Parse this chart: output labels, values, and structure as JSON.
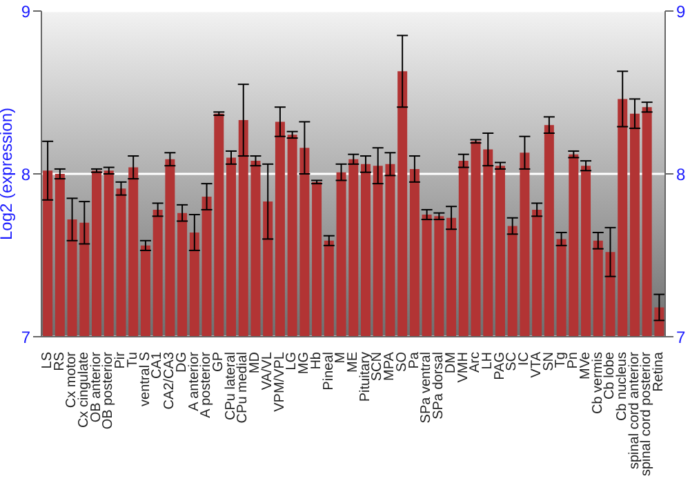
{
  "chart_data": {
    "type": "bar",
    "ylabel": "Log2 (expression)",
    "categories": [
      "LS",
      "RS",
      "Cx motor",
      "Cx cingulate",
      "OB anterior",
      "OB posterior",
      "Pir",
      "Tu",
      "ventral S",
      "CA1",
      "CA2/CA3",
      "DG",
      "A anterior",
      "A posterior",
      "GP",
      "CPu lateral",
      "CPu medial",
      "MD",
      "VA/VL",
      "VPM/VPL",
      "LG",
      "MG",
      "Hb",
      "Pineal",
      "M",
      "ME",
      "Pituitary",
      "SCN",
      "MPA",
      "SO",
      "Pa",
      "SPa ventral",
      "SPa dorsal",
      "DM",
      "VMH",
      "Arc",
      "LH",
      "PAG",
      "SC",
      "IC",
      "VTA",
      "SN",
      "Tg",
      "Pn",
      "MVe",
      "Cb vermis",
      "Cb lobe",
      "Cb nucleus",
      "spinal cord anterior",
      "spinal cord posterior",
      "Retina"
    ],
    "values": [
      8.02,
      8.0,
      7.72,
      7.7,
      8.02,
      8.02,
      7.91,
      8.04,
      7.56,
      7.78,
      8.09,
      7.76,
      7.64,
      7.86,
      8.37,
      8.1,
      8.33,
      8.08,
      7.83,
      8.32,
      8.24,
      8.16,
      7.95,
      7.59,
      8.01,
      8.09,
      8.06,
      8.05,
      8.06,
      8.63,
      8.03,
      7.75,
      7.74,
      7.73,
      8.08,
      8.2,
      8.15,
      8.05,
      7.68,
      8.13,
      7.78,
      8.3,
      7.6,
      8.12,
      8.05,
      7.59,
      7.52,
      8.46,
      8.37,
      8.41,
      7.18
    ],
    "errors": [
      0.18,
      0.03,
      0.13,
      0.13,
      0.01,
      0.02,
      0.04,
      0.07,
      0.03,
      0.04,
      0.04,
      0.05,
      0.11,
      0.08,
      0.01,
      0.04,
      0.22,
      0.03,
      0.23,
      0.09,
      0.02,
      0.16,
      0.01,
      0.03,
      0.05,
      0.03,
      0.05,
      0.11,
      0.07,
      0.22,
      0.08,
      0.03,
      0.02,
      0.07,
      0.04,
      0.01,
      0.1,
      0.02,
      0.05,
      0.1,
      0.04,
      0.05,
      0.04,
      0.02,
      0.03,
      0.05,
      0.15,
      0.17,
      0.09,
      0.03,
      0.08
    ],
    "color": "#b23434",
    "ylim": [
      7,
      9
    ],
    "yticks": [
      7,
      8,
      9
    ],
    "y2lim": [
      7,
      9
    ],
    "y2ticks": [
      7,
      8,
      9
    ],
    "grid": "y"
  }
}
